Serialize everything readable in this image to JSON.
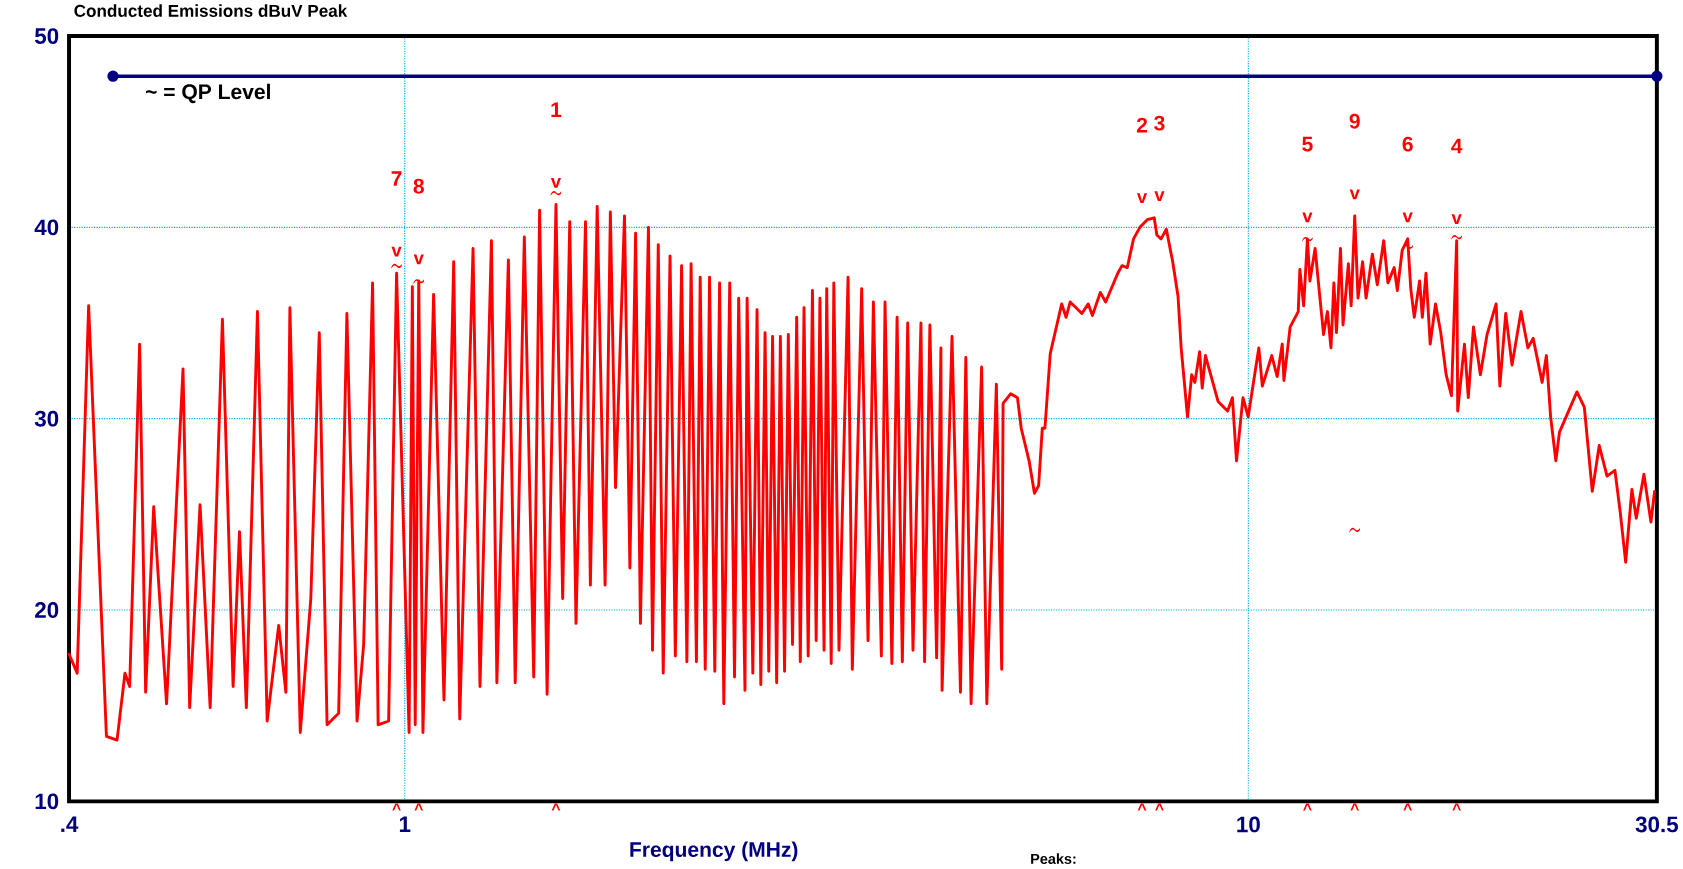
{
  "chart_data": {
    "type": "line",
    "title": "Conducted Emissions dBuV Peak",
    "xlabel": "Frequency (MHz)",
    "log": "x",
    "xlim": [
      0.4,
      30.5
    ],
    "xticks": [
      {
        "value": 0.4,
        "label": ".4"
      },
      1,
      10,
      30.5
    ],
    "ylim": [
      10,
      50
    ],
    "yticks": [
      10,
      20,
      30,
      40,
      50
    ],
    "grid": true,
    "line_style": "solid",
    "series": [
      {
        "color": "#ff0000",
        "x": [
          0.4,
          0.409,
          0.422,
          0.443,
          0.456,
          0.466,
          0.472,
          0.485,
          0.493,
          0.504,
          0.522,
          0.546,
          0.556,
          0.572,
          0.588,
          0.608,
          0.626,
          0.637,
          0.649,
          0.669,
          0.687,
          0.709,
          0.723,
          0.731,
          0.752,
          0.774,
          0.792,
          0.809,
          0.835,
          0.854,
          0.878,
          0.894,
          0.916,
          0.93,
          0.957,
          0.978,
          1.012,
          1.021,
          1.029,
          1.039,
          1.051,
          1.082,
          1.113,
          1.143,
          1.162,
          1.205,
          1.228,
          1.267,
          1.286,
          1.327,
          1.352,
          1.386,
          1.422,
          1.445,
          1.475,
          1.511,
          1.539,
          1.569,
          1.596,
          1.638,
          1.66,
          1.691,
          1.728,
          1.753,
          1.778,
          1.822,
          1.849,
          1.878,
          1.903,
          1.945,
          1.967,
          1.998,
          2.025,
          2.063,
          2.093,
          2.129,
          2.16,
          2.185,
          2.217,
          2.24,
          2.271,
          2.298,
          2.331,
          2.362,
          2.389,
          2.428,
          2.46,
          2.488,
          2.531,
          2.546,
          2.586,
          2.616,
          2.643,
          2.674,
          2.701,
          2.729,
          2.76,
          2.788,
          2.82,
          2.849,
          2.882,
          2.915,
          2.944,
          2.974,
          3.008,
          3.043,
          3.074,
          3.106,
          3.141,
          3.164,
          3.203,
          3.226,
          3.272,
          3.354,
          3.393,
          3.481,
          3.542,
          3.594,
          3.673,
          3.71,
          3.78,
          3.834,
          3.89,
          3.947,
          4.004,
          4.092,
          4.133,
          4.193,
          4.271,
          4.321,
          4.335,
          4.454,
          4.558,
          4.625,
          4.692,
          4.829,
          4.898,
          5.027,
          5.101,
          5.12,
          5.226,
          5.325,
          5.38,
          5.497,
          5.578,
          5.642,
          5.699,
          5.74,
          5.824,
          6.009,
          6.08,
          6.15,
          6.349,
          6.46,
          6.535,
          6.677,
          6.775,
          7.003,
          7.084,
          7.187,
          7.311,
          7.439,
          7.591,
          7.735,
          7.792,
          7.881,
          7.996,
          8.135,
          8.254,
          8.325,
          8.471,
          8.568,
          8.643,
          8.755,
          8.818,
          8.895,
          9.207,
          9.45,
          9.575,
          9.683,
          9.855,
          9.996,
          10.29,
          10.39,
          10.66,
          10.82,
          10.97,
          11.02,
          11.21,
          11.46,
          11.51,
          11.63,
          11.75,
          11.83,
          12.0,
          12.14,
          12.28,
          12.41,
          12.53,
          12.63,
          12.72,
          12.86,
          12.95,
          13.14,
          13.24,
          13.37,
          13.49,
          13.66,
          13.79,
          14.03,
          14.22,
          14.47,
          14.64,
          14.89,
          15.02,
          15.22,
          15.45,
          15.58,
          15.73,
          15.96,
          16.08,
          16.24,
          16.43,
          16.67,
          16.91,
          17.16,
          17.41,
          17.66,
          17.71,
          18.04,
          18.23,
          18.49,
          18.84,
          19.19,
          19.67,
          19.87,
          20.19,
          20.54,
          21.05,
          21.45,
          21.76,
          22.3,
          22.56,
          22.82,
          23.15,
          23.38,
          24.52,
          25.02,
          25.57,
          26.06,
          26.62,
          27.2,
          27.6,
          28.01,
          28.49,
          28.83,
          29.44,
          30.01,
          30.31
        ],
        "values": [
          17.7,
          16.7,
          35.9,
          13.4,
          13.2,
          16.7,
          16.0,
          33.9,
          15.7,
          25.4,
          15.1,
          32.6,
          14.9,
          25.5,
          14.9,
          35.2,
          16.0,
          24.1,
          14.9,
          35.6,
          14.2,
          19.2,
          15.7,
          35.8,
          13.6,
          20.6,
          34.5,
          14.0,
          14.6,
          35.5,
          14.2,
          18.2,
          37.1,
          14.0,
          14.2,
          37.6,
          13.6,
          36.9,
          14.0,
          37.2,
          13.6,
          36.5,
          15.3,
          38.2,
          14.3,
          38.9,
          16.0,
          39.3,
          16.2,
          38.3,
          16.2,
          39.5,
          16.5,
          40.9,
          15.6,
          41.2,
          20.6,
          40.3,
          19.3,
          40.3,
          21.3,
          41.1,
          21.3,
          40.8,
          26.4,
          40.6,
          22.2,
          39.7,
          19.3,
          40.0,
          17.9,
          39.1,
          16.7,
          38.5,
          17.6,
          38.0,
          17.3,
          38.1,
          17.3,
          37.4,
          16.9,
          37.4,
          16.8,
          37.1,
          15.1,
          37.1,
          16.5,
          36.3,
          15.8,
          36.3,
          16.7,
          35.7,
          16.1,
          34.5,
          16.8,
          34.3,
          16.2,
          34.3,
          16.8,
          34.4,
          18.2,
          35.3,
          17.3,
          35.8,
          17.6,
          36.7,
          18.4,
          36.3,
          17.9,
          36.8,
          17.2,
          37.1,
          17.9,
          37.4,
          16.9,
          36.8,
          18.4,
          36.1,
          17.6,
          36.1,
          17.2,
          35.3,
          17.3,
          35.0,
          17.9,
          35.0,
          17.3,
          34.9,
          17.5,
          33.7,
          15.8,
          34.3,
          15.7,
          33.2,
          15.1,
          32.7,
          15.1,
          31.8,
          16.9,
          30.8,
          31.3,
          31.1,
          29.5,
          27.8,
          26.1,
          26.5,
          29.5,
          29.5,
          33.4,
          36.0,
          35.3,
          36.1,
          35.5,
          36.0,
          35.4,
          36.6,
          36.1,
          37.6,
          38.0,
          37.9,
          39.4,
          40.0,
          40.4,
          40.5,
          39.6,
          39.4,
          39.9,
          38.2,
          36.4,
          33.7,
          30.1,
          32.3,
          31.9,
          33.5,
          31.6,
          33.3,
          30.9,
          30.4,
          31.1,
          27.8,
          31.1,
          30.1,
          33.7,
          31.7,
          33.3,
          32.2,
          33.9,
          32.0,
          34.8,
          35.6,
          37.8,
          35.9,
          39.4,
          37.2,
          38.9,
          36.6,
          34.4,
          35.6,
          33.7,
          37.1,
          34.5,
          38.9,
          34.9,
          38.1,
          35.9,
          40.6,
          36.3,
          38.2,
          36.3,
          38.6,
          37.0,
          39.3,
          37.1,
          37.9,
          36.7,
          38.8,
          39.4,
          36.8,
          35.3,
          37.2,
          35.3,
          37.6,
          33.9,
          36.0,
          34.5,
          32.3,
          31.2,
          39.3,
          30.4,
          33.9,
          31.1,
          34.8,
          32.3,
          34.4,
          36.0,
          31.7,
          35.5,
          32.8,
          35.6,
          33.7,
          34.2,
          31.9,
          33.3,
          30.1,
          27.8,
          29.3,
          31.4,
          30.6,
          26.2,
          28.6,
          27.0,
          27.3,
          25.1,
          22.5,
          26.3,
          24.8,
          27.1,
          24.6,
          26.2
        ]
      },
      {
        "color": "#000080",
        "marker": "circle",
        "x": [
          0.451,
          30.5
        ],
        "values": [
          47.9,
          47.9
        ]
      },
      {
        "type": "scatter",
        "color": "#ff0000",
        "x": [
          1.511,
          7.591,
          7.735,
          17.66,
          11.75,
          15.45,
          0.978,
          1.039,
          13.37
        ],
        "values": [
          41.8,
          null,
          null,
          39.5,
          39.4,
          39.0,
          38.0,
          37.2,
          24.2
        ]
      }
    ],
    "annotations": [
      "~ = QP Level",
      "Peaks:",
      "1",
      "2",
      "3",
      "4",
      "5",
      "6",
      "7",
      "8",
      "9",
      "^",
      "^",
      "^",
      "^",
      "^",
      "^",
      "^",
      "^",
      "^",
      {
        "text": "v",
        "x": 1.511,
        "y": 41.2
      },
      {
        "text": "v",
        "x": 7.591,
        "y": 40.4
      },
      {
        "text": "v",
        "x": 7.735,
        "y": 40.5
      },
      {
        "text": "v",
        "x": 17.66,
        "y": 39.3
      },
      {
        "text": "v",
        "x": 11.75,
        "y": 39.4
      },
      {
        "text": "v",
        "x": 15.45,
        "y": 39.4
      },
      {
        "text": "v",
        "x": 0.978,
        "y": 37.6
      },
      {
        "text": "v",
        "x": 1.039,
        "y": 37.2
      },
      {
        "text": "v",
        "x": 13.37,
        "y": 40.6
      }
    ]
  }
}
